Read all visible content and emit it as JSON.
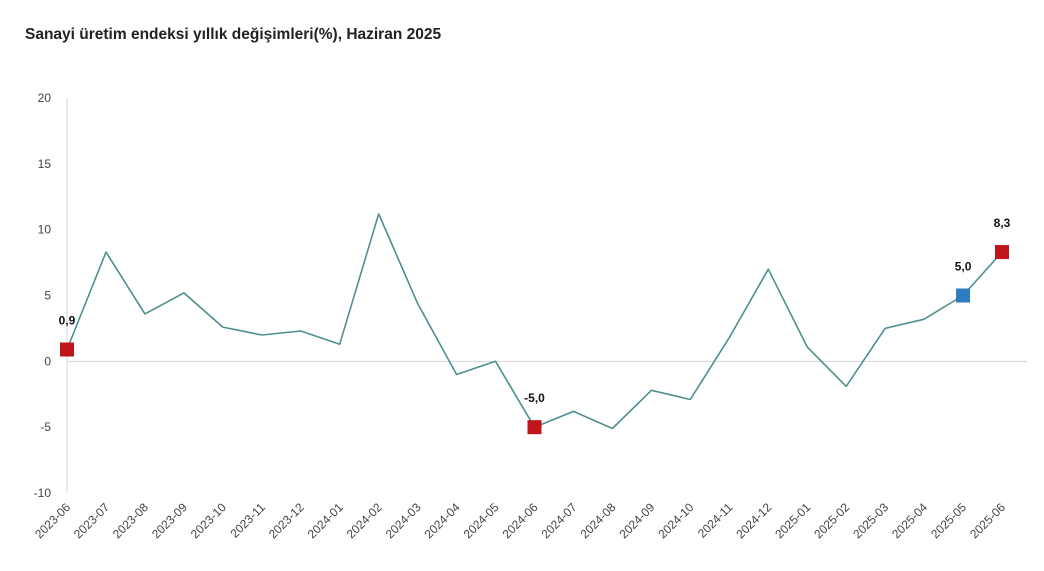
{
  "chart_data": {
    "type": "line",
    "title": "Sanayi üretim endeksi yıllık değişimleri(%), Haziran 2025",
    "xlabel": "",
    "ylabel": "",
    "ylim": [
      -10,
      20
    ],
    "yticks": [
      20,
      15,
      10,
      5,
      0,
      -5,
      -10
    ],
    "grid": false,
    "legend": "none",
    "categories": [
      "2023-06",
      "2023-07",
      "2023-08",
      "2023-09",
      "2023-10",
      "2023-11",
      "2023-12",
      "2024-01",
      "2024-02",
      "2024-03",
      "2024-04",
      "2024-05",
      "2024-06",
      "2024-07",
      "2024-08",
      "2024-09",
      "2024-10",
      "2024-11",
      "2024-12",
      "2025-01",
      "2025-02",
      "2025-03",
      "2025-04",
      "2025-05",
      "2025-06"
    ],
    "values": [
      0.9,
      8.3,
      3.6,
      5.2,
      2.6,
      2.0,
      2.3,
      1.3,
      11.2,
      4.4,
      -1.0,
      0.0,
      -5.0,
      -3.8,
      -5.1,
      -2.2,
      -2.9,
      1.8,
      7.0,
      1.1,
      -1.9,
      2.5,
      3.2,
      5.0,
      8.3
    ],
    "line_color": "#4f8f8f",
    "highlights": [
      {
        "index": 0,
        "label": "0,9",
        "color": "#c0141b"
      },
      {
        "index": 12,
        "label": "-5,0",
        "color": "#c0141b"
      },
      {
        "index": 23,
        "label": "5,0",
        "color": "#2f7bbf"
      },
      {
        "index": 24,
        "label": "8,3",
        "color": "#c0141b"
      }
    ]
  }
}
